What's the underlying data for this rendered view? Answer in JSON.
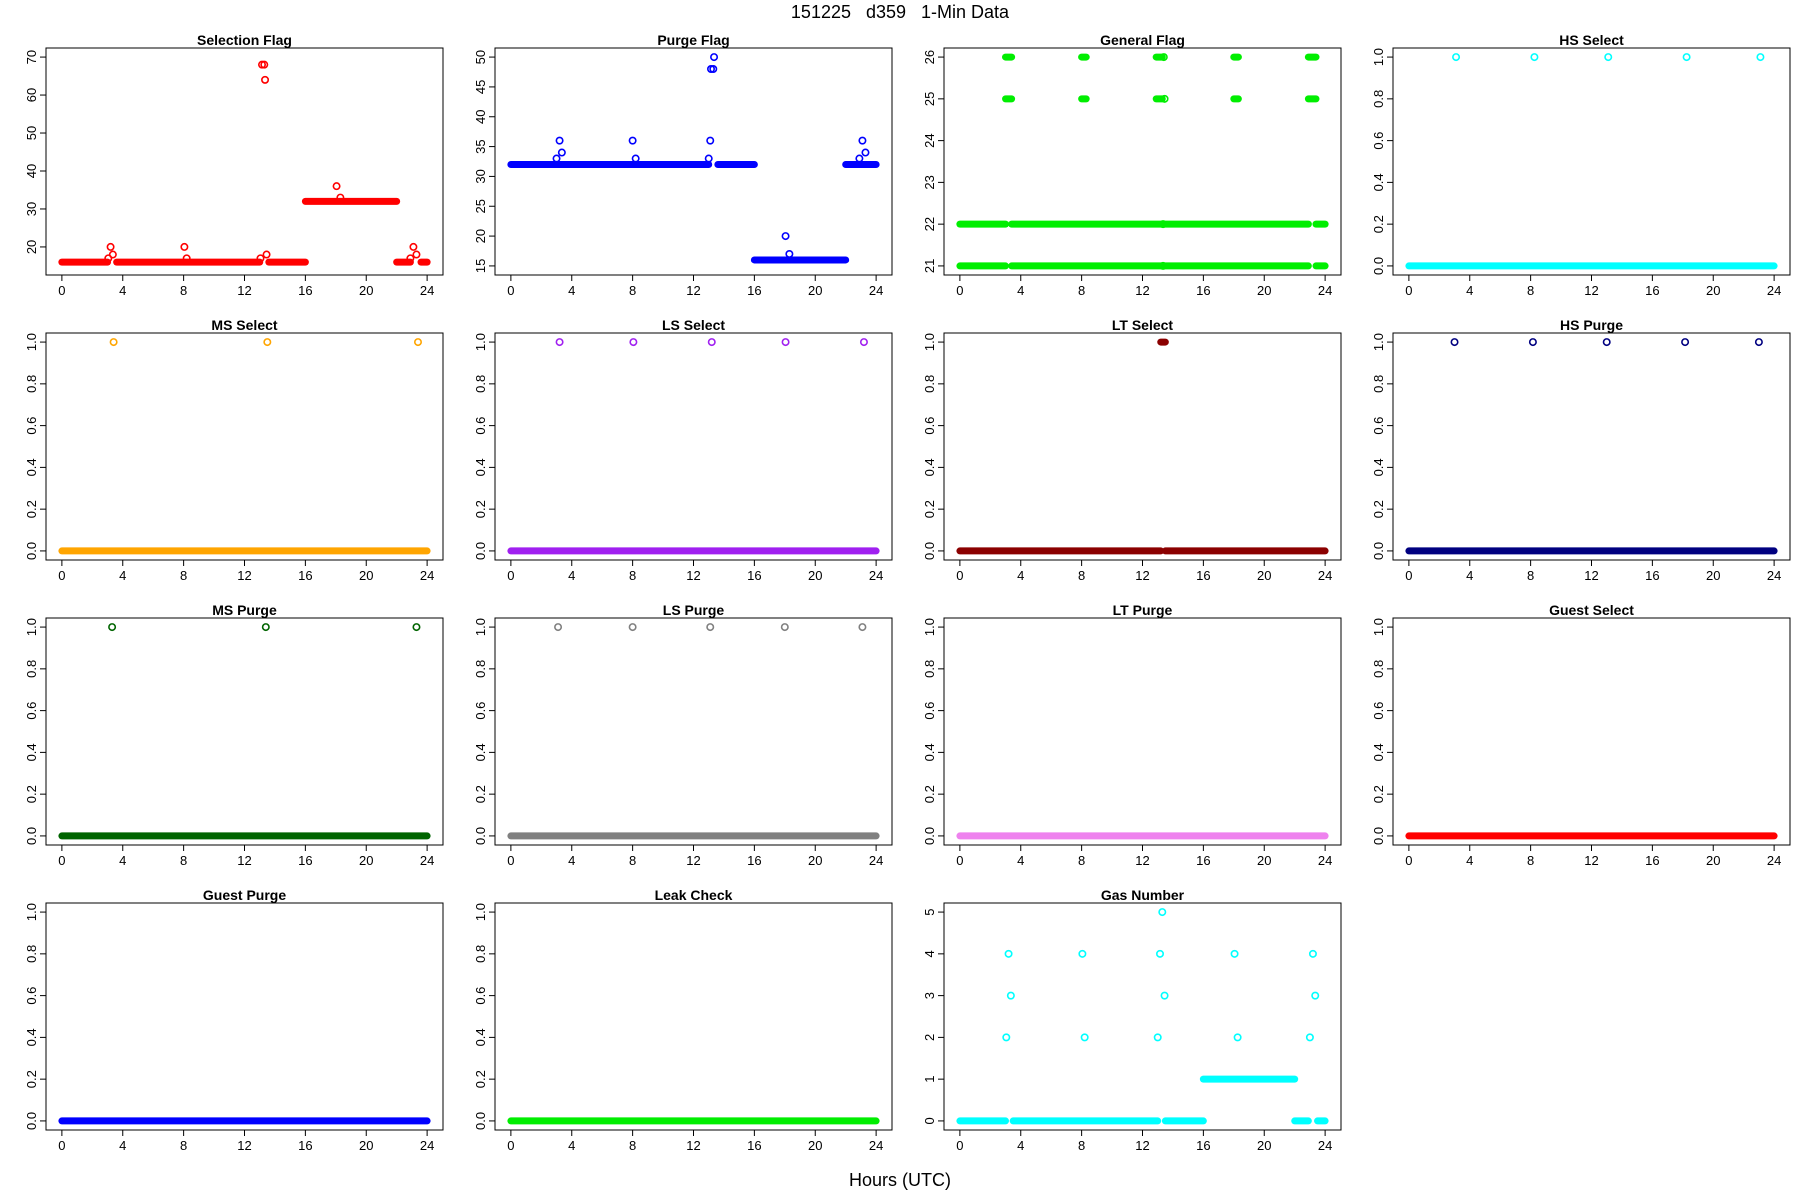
{
  "title": "151225   d359   1-Min Data",
  "xlabel": "Hours (UTC)",
  "chart_data": [
    {
      "type": "scatter",
      "title": "Selection Flag",
      "color": "#ff0000",
      "xlim": [
        0,
        24
      ],
      "ylim": [
        15,
        70
      ],
      "xticks": [
        "0",
        "4",
        "8",
        "12",
        "16",
        "20",
        "24"
      ],
      "yticks": [
        "20",
        "30",
        "40",
        "50",
        "60",
        "70"
      ],
      "segments": [
        {
          "y": 16,
          "x": [
            0,
            3
          ]
        },
        {
          "y": 16,
          "x": [
            3.6,
            13
          ]
        },
        {
          "y": 16,
          "x": [
            13.6,
            16
          ]
        },
        {
          "y": 32,
          "x": [
            16,
            22
          ]
        },
        {
          "y": 16,
          "x": [
            22,
            22.9
          ]
        },
        {
          "y": 16,
          "x": [
            23.6,
            24
          ]
        }
      ],
      "points": [
        {
          "x": 3.05,
          "y": 17
        },
        {
          "x": 3.2,
          "y": 20
        },
        {
          "x": 3.35,
          "y": 18
        },
        {
          "x": 8.05,
          "y": 20
        },
        {
          "x": 8.2,
          "y": 17
        },
        {
          "x": 13.05,
          "y": 17
        },
        {
          "x": 13.15,
          "y": 68
        },
        {
          "x": 13.3,
          "y": 68
        },
        {
          "x": 13.35,
          "y": 64
        },
        {
          "x": 13.45,
          "y": 18
        },
        {
          "x": 18.05,
          "y": 36
        },
        {
          "x": 18.3,
          "y": 33
        },
        {
          "x": 22.9,
          "y": 17
        },
        {
          "x": 23.1,
          "y": 20
        },
        {
          "x": 23.3,
          "y": 18
        }
      ]
    },
    {
      "type": "scatter",
      "title": "Purge Flag",
      "color": "#0000ff",
      "xlim": [
        0,
        24
      ],
      "ylim": [
        15,
        50
      ],
      "xticks": [
        "0",
        "4",
        "8",
        "12",
        "16",
        "20",
        "24"
      ],
      "yticks": [
        "15",
        "20",
        "25",
        "30",
        "35",
        "40",
        "45",
        "50"
      ],
      "segments": [
        {
          "y": 32,
          "x": [
            0,
            13
          ]
        },
        {
          "y": 32,
          "x": [
            13.6,
            16
          ]
        },
        {
          "y": 16,
          "x": [
            16,
            22
          ]
        },
        {
          "y": 32,
          "x": [
            22,
            24
          ]
        }
      ],
      "points": [
        {
          "x": 3,
          "y": 33
        },
        {
          "x": 3.2,
          "y": 36
        },
        {
          "x": 3.35,
          "y": 34
        },
        {
          "x": 8,
          "y": 36
        },
        {
          "x": 8.2,
          "y": 33
        },
        {
          "x": 13,
          "y": 33
        },
        {
          "x": 13.1,
          "y": 36
        },
        {
          "x": 13.15,
          "y": 48
        },
        {
          "x": 13.3,
          "y": 48
        },
        {
          "x": 13.35,
          "y": 50
        },
        {
          "x": 18.05,
          "y": 20
        },
        {
          "x": 18.3,
          "y": 17
        },
        {
          "x": 22.9,
          "y": 33
        },
        {
          "x": 23.1,
          "y": 36
        },
        {
          "x": 23.3,
          "y": 34
        }
      ]
    },
    {
      "type": "scatter",
      "title": "General Flag",
      "color": "#00ee00",
      "xlim": [
        0,
        24
      ],
      "ylim": [
        21,
        26
      ],
      "xticks": [
        "0",
        "4",
        "8",
        "12",
        "16",
        "20",
        "24"
      ],
      "yticks": [
        "21",
        "22",
        "23",
        "24",
        "25",
        "26"
      ],
      "segments": [
        {
          "y": 21,
          "x": [
            0,
            3
          ]
        },
        {
          "y": 22,
          "x": [
            0,
            3
          ]
        },
        {
          "y": 21,
          "x": [
            3.4,
            13.2
          ]
        },
        {
          "y": 22,
          "x": [
            3.4,
            13.2
          ]
        },
        {
          "y": 21,
          "x": [
            13.5,
            22.9
          ]
        },
        {
          "y": 22,
          "x": [
            13.5,
            22.9
          ]
        },
        {
          "y": 21,
          "x": [
            23.4,
            24
          ]
        },
        {
          "y": 22,
          "x": [
            23.4,
            24
          ]
        },
        {
          "y": 25,
          "x": [
            3,
            3.4
          ]
        },
        {
          "y": 26,
          "x": [
            3,
            3.4
          ]
        },
        {
          "y": 25,
          "x": [
            8,
            8.3
          ]
        },
        {
          "y": 26,
          "x": [
            8,
            8.3
          ]
        },
        {
          "y": 25,
          "x": [
            12.9,
            13.3
          ]
        },
        {
          "y": 26,
          "x": [
            12.9,
            13.3
          ]
        },
        {
          "y": 25,
          "x": [
            18,
            18.3
          ]
        },
        {
          "y": 26,
          "x": [
            18,
            18.3
          ]
        },
        {
          "y": 25,
          "x": [
            22.9,
            23.4
          ]
        },
        {
          "y": 26,
          "x": [
            22.9,
            23.4
          ]
        }
      ],
      "points": [
        {
          "x": 13.4,
          "y": 26
        },
        {
          "x": 13.45,
          "y": 25
        },
        {
          "x": 13.35,
          "y": 22
        },
        {
          "x": 13.35,
          "y": 21
        }
      ]
    },
    {
      "type": "scatter",
      "title": "HS Select",
      "color": "#00ffff",
      "xlim": [
        0,
        24
      ],
      "ylim": [
        0,
        1
      ],
      "xticks": [
        "0",
        "4",
        "8",
        "12",
        "16",
        "20",
        "24"
      ],
      "yticks": [
        "0.0",
        "0.2",
        "0.4",
        "0.6",
        "0.8",
        "1.0"
      ],
      "segments": [
        {
          "y": 0,
          "x": [
            0,
            24
          ]
        }
      ],
      "points": [
        {
          "x": 3.1,
          "y": 1
        },
        {
          "x": 8.25,
          "y": 1
        },
        {
          "x": 13.1,
          "y": 1
        },
        {
          "x": 18.25,
          "y": 1
        },
        {
          "x": 23.1,
          "y": 1
        }
      ]
    },
    {
      "type": "scatter",
      "title": "MS Select",
      "color": "#ffa500",
      "xlim": [
        0,
        24
      ],
      "ylim": [
        0,
        1
      ],
      "xticks": [
        "0",
        "4",
        "8",
        "12",
        "16",
        "20",
        "24"
      ],
      "yticks": [
        "0.0",
        "0.2",
        "0.4",
        "0.6",
        "0.8",
        "1.0"
      ],
      "segments": [
        {
          "y": 0,
          "x": [
            0,
            24
          ]
        }
      ],
      "points": [
        {
          "x": 3.4,
          "y": 1
        },
        {
          "x": 13.5,
          "y": 1
        },
        {
          "x": 23.4,
          "y": 1
        }
      ]
    },
    {
      "type": "scatter",
      "title": "LS Select",
      "color": "#a020f0",
      "xlim": [
        0,
        24
      ],
      "ylim": [
        0,
        1
      ],
      "xticks": [
        "0",
        "4",
        "8",
        "12",
        "16",
        "20",
        "24"
      ],
      "yticks": [
        "0.0",
        "0.2",
        "0.4",
        "0.6",
        "0.8",
        "1.0"
      ],
      "segments": [
        {
          "y": 0,
          "x": [
            0,
            24
          ]
        }
      ],
      "points": [
        {
          "x": 3.2,
          "y": 1
        },
        {
          "x": 8.05,
          "y": 1
        },
        {
          "x": 13.2,
          "y": 1
        },
        {
          "x": 18.05,
          "y": 1
        },
        {
          "x": 23.2,
          "y": 1
        }
      ]
    },
    {
      "type": "scatter",
      "title": "LT Select",
      "color": "#8b0000",
      "xlim": [
        0,
        24
      ],
      "ylim": [
        0,
        1
      ],
      "xticks": [
        "0",
        "4",
        "8",
        "12",
        "16",
        "20",
        "24"
      ],
      "yticks": [
        "0.0",
        "0.2",
        "0.4",
        "0.6",
        "0.8",
        "1.0"
      ],
      "segments": [
        {
          "y": 0,
          "x": [
            0,
            13.2
          ]
        },
        {
          "y": 0,
          "x": [
            13.5,
            24
          ]
        },
        {
          "y": 1,
          "x": [
            13.2,
            13.5
          ]
        }
      ],
      "points": []
    },
    {
      "type": "scatter",
      "title": "HS Purge",
      "color": "#000080",
      "xlim": [
        0,
        24
      ],
      "ylim": [
        0,
        1
      ],
      "xticks": [
        "0",
        "4",
        "8",
        "12",
        "16",
        "20",
        "24"
      ],
      "yticks": [
        "0.0",
        "0.2",
        "0.4",
        "0.6",
        "0.8",
        "1.0"
      ],
      "segments": [
        {
          "y": 0,
          "x": [
            0,
            24
          ]
        }
      ],
      "points": [
        {
          "x": 3,
          "y": 1
        },
        {
          "x": 8.15,
          "y": 1
        },
        {
          "x": 13,
          "y": 1
        },
        {
          "x": 18.15,
          "y": 1
        },
        {
          "x": 23,
          "y": 1
        }
      ]
    },
    {
      "type": "scatter",
      "title": "MS Purge",
      "color": "#006400",
      "xlim": [
        0,
        24
      ],
      "ylim": [
        0,
        1
      ],
      "xticks": [
        "0",
        "4",
        "8",
        "12",
        "16",
        "20",
        "24"
      ],
      "yticks": [
        "0.0",
        "0.2",
        "0.4",
        "0.6",
        "0.8",
        "1.0"
      ],
      "segments": [
        {
          "y": 0,
          "x": [
            0,
            24
          ]
        }
      ],
      "points": [
        {
          "x": 3.3,
          "y": 1
        },
        {
          "x": 13.4,
          "y": 1
        },
        {
          "x": 23.3,
          "y": 1
        }
      ]
    },
    {
      "type": "scatter",
      "title": "LS Purge",
      "color": "#808080",
      "xlim": [
        0,
        24
      ],
      "ylim": [
        0,
        1
      ],
      "xticks": [
        "0",
        "4",
        "8",
        "12",
        "16",
        "20",
        "24"
      ],
      "yticks": [
        "0.0",
        "0.2",
        "0.4",
        "0.6",
        "0.8",
        "1.0"
      ],
      "segments": [
        {
          "y": 0,
          "x": [
            0,
            24
          ]
        }
      ],
      "points": [
        {
          "x": 3.1,
          "y": 1
        },
        {
          "x": 8,
          "y": 1
        },
        {
          "x": 13.1,
          "y": 1
        },
        {
          "x": 18,
          "y": 1
        },
        {
          "x": 23.1,
          "y": 1
        }
      ]
    },
    {
      "type": "scatter",
      "title": "LT Purge",
      "color": "#ee82ee",
      "xlim": [
        0,
        24
      ],
      "ylim": [
        0,
        1
      ],
      "xticks": [
        "0",
        "4",
        "8",
        "12",
        "16",
        "20",
        "24"
      ],
      "yticks": [
        "0.0",
        "0.2",
        "0.4",
        "0.6",
        "0.8",
        "1.0"
      ],
      "segments": [
        {
          "y": 0,
          "x": [
            0,
            24
          ]
        }
      ],
      "points": []
    },
    {
      "type": "scatter",
      "title": "Guest Select",
      "color": "#ff0000",
      "xlim": [
        0,
        24
      ],
      "ylim": [
        0,
        1
      ],
      "xticks": [
        "0",
        "4",
        "8",
        "12",
        "16",
        "20",
        "24"
      ],
      "yticks": [
        "0.0",
        "0.2",
        "0.4",
        "0.6",
        "0.8",
        "1.0"
      ],
      "segments": [
        {
          "y": 0,
          "x": [
            0,
            24
          ]
        }
      ],
      "points": []
    },
    {
      "type": "scatter",
      "title": "Guest Purge",
      "color": "#0000ff",
      "xlim": [
        0,
        24
      ],
      "ylim": [
        0,
        1
      ],
      "xticks": [
        "0",
        "4",
        "8",
        "12",
        "16",
        "20",
        "24"
      ],
      "yticks": [
        "0.0",
        "0.2",
        "0.4",
        "0.6",
        "0.8",
        "1.0"
      ],
      "segments": [
        {
          "y": 0,
          "x": [
            0,
            24
          ]
        }
      ],
      "points": []
    },
    {
      "type": "scatter",
      "title": "Leak Check",
      "color": "#00ee00",
      "xlim": [
        0,
        24
      ],
      "ylim": [
        0,
        1
      ],
      "xticks": [
        "0",
        "4",
        "8",
        "12",
        "16",
        "20",
        "24"
      ],
      "yticks": [
        "0.0",
        "0.2",
        "0.4",
        "0.6",
        "0.8",
        "1.0"
      ],
      "segments": [
        {
          "y": 0,
          "x": [
            0,
            24
          ]
        }
      ],
      "points": []
    },
    {
      "type": "scatter",
      "title": "Gas Number",
      "color": "#00ffff",
      "xlim": [
        0,
        24
      ],
      "ylim": [
        0,
        5
      ],
      "xticks": [
        "0",
        "4",
        "8",
        "12",
        "16",
        "20",
        "24"
      ],
      "yticks": [
        "0",
        "1",
        "2",
        "3",
        "4",
        "5"
      ],
      "segments": [
        {
          "y": 0,
          "x": [
            0,
            3
          ]
        },
        {
          "y": 0,
          "x": [
            3.5,
            13
          ]
        },
        {
          "y": 0,
          "x": [
            13.5,
            16
          ]
        },
        {
          "y": 1,
          "x": [
            16,
            22
          ]
        },
        {
          "y": 0,
          "x": [
            22,
            22.9
          ]
        },
        {
          "y": 0,
          "x": [
            23.5,
            24
          ]
        }
      ],
      "points": [
        {
          "x": 3.05,
          "y": 2
        },
        {
          "x": 3.2,
          "y": 4
        },
        {
          "x": 3.35,
          "y": 3
        },
        {
          "x": 8.05,
          "y": 4
        },
        {
          "x": 8.2,
          "y": 2
        },
        {
          "x": 13,
          "y": 2
        },
        {
          "x": 13.15,
          "y": 4
        },
        {
          "x": 13.3,
          "y": 5
        },
        {
          "x": 13.45,
          "y": 3
        },
        {
          "x": 18.05,
          "y": 4
        },
        {
          "x": 18.25,
          "y": 2
        },
        {
          "x": 23,
          "y": 2
        },
        {
          "x": 23.2,
          "y": 4
        },
        {
          "x": 23.35,
          "y": 3
        }
      ]
    }
  ]
}
